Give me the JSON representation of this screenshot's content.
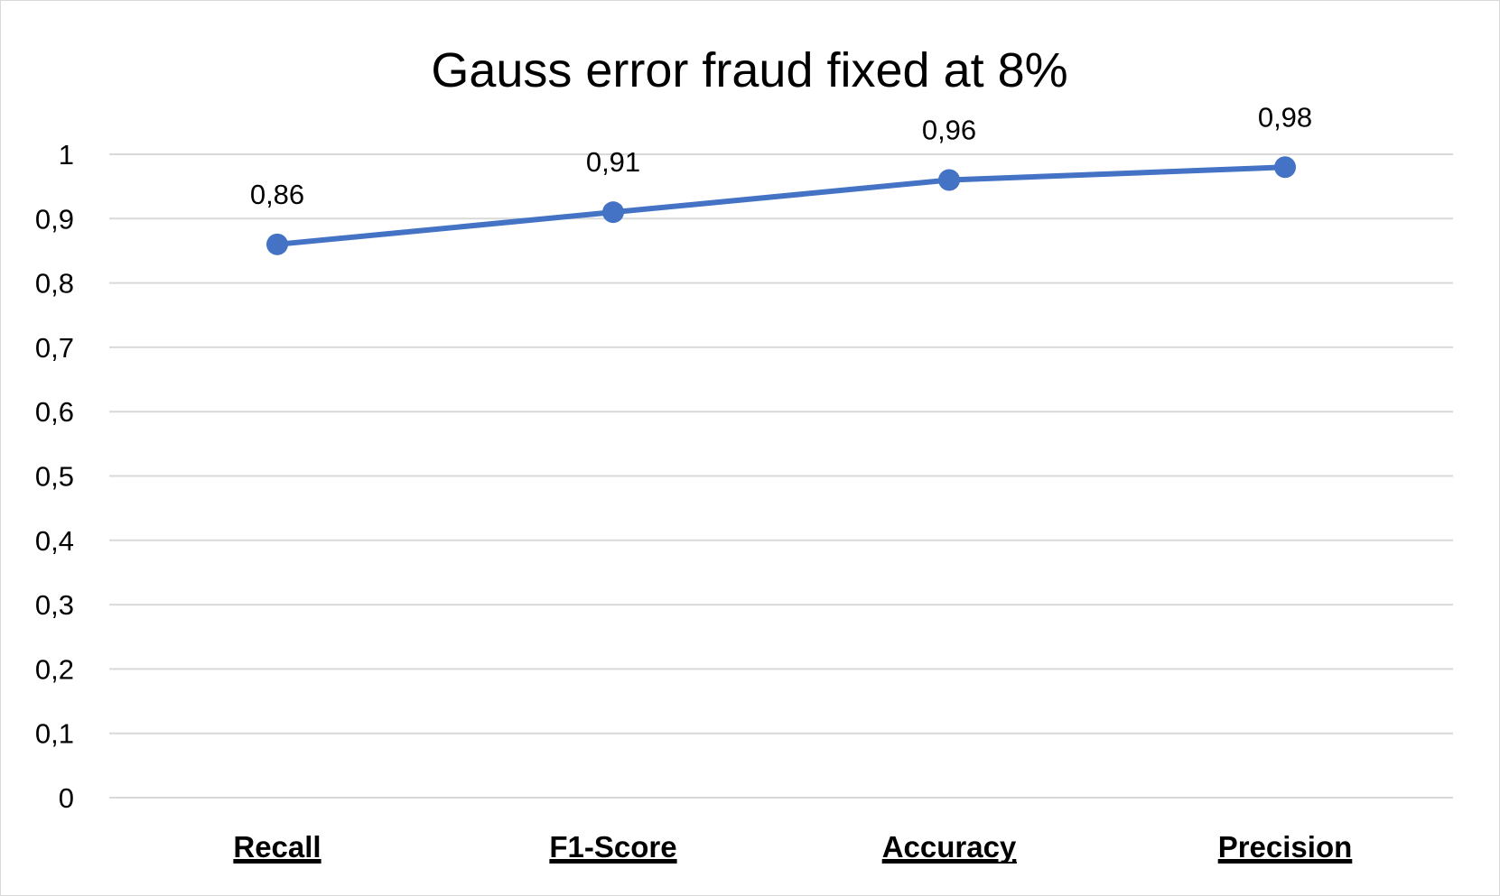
{
  "chart_data": {
    "type": "line",
    "title": "Gauss error fraud fixed at 8%",
    "xlabel": "",
    "ylabel": "",
    "categories": [
      "Recall",
      "F1-Score",
      "Accuracy",
      "Precision"
    ],
    "series": [
      {
        "values": [
          0.86,
          0.91,
          0.96,
          0.98
        ],
        "data_labels": [
          "0,86",
          "0,91",
          "0,96",
          "0,98"
        ],
        "color": "#4472c4"
      }
    ],
    "ylim": [
      0,
      1
    ],
    "y_ticks": [
      0,
      0.1,
      0.2,
      0.3,
      0.4,
      0.5,
      0.6,
      0.7,
      0.8,
      0.9,
      1
    ],
    "y_tick_labels": [
      "0",
      "0,1",
      "0,2",
      "0,3",
      "0,4",
      "0,5",
      "0,6",
      "0,7",
      "0,8",
      "0,9",
      "1"
    ],
    "grid": true,
    "legend": "none"
  }
}
